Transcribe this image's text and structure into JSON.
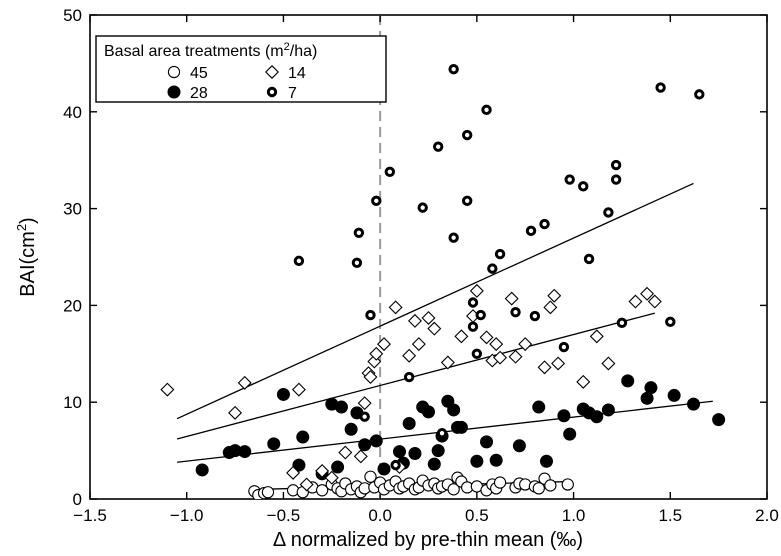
{
  "chart_data": {
    "type": "scatter",
    "title": "",
    "xlabel": "Δ normalized by pre-thin mean (‰)",
    "ylabel_main": "BAI(cm",
    "ylabel_sup": "2",
    "ylabel_end": ")",
    "xlim": [
      -1.5,
      2.0
    ],
    "ylim": [
      0,
      50
    ],
    "xticks": [
      -1.5,
      -1.0,
      -0.5,
      0.0,
      0.5,
      1.0,
      1.5,
      2.0
    ],
    "xtick_labels": [
      "−1.5",
      "−1.0",
      "−0.5",
      "0.0",
      "0.5",
      "1.0",
      "1.5",
      "2.0"
    ],
    "yticks": [
      0,
      10,
      20,
      30,
      40,
      50
    ],
    "ytick_labels": [
      "0",
      "10",
      "20",
      "30",
      "40",
      "50"
    ],
    "reference_line_x": 0.0,
    "grid": false,
    "legend": {
      "placement": "top-left",
      "title_main": "Basal area treatments (m",
      "title_sup": "2",
      "title_end": "/ha)"
    },
    "series": [
      {
        "name": "45",
        "marker": "open-circle",
        "fit": [
          [
            -0.62,
            1.0
          ],
          [
            0.98,
            1.8
          ]
        ],
        "points": [
          [
            -0.65,
            0.8
          ],
          [
            -0.63,
            0.4
          ],
          [
            -0.6,
            0.6
          ],
          [
            -0.58,
            0.7
          ],
          [
            -0.45,
            0.9
          ],
          [
            -0.4,
            0.7
          ],
          [
            -0.35,
            1.2
          ],
          [
            -0.3,
            0.9
          ],
          [
            -0.25,
            1.5
          ],
          [
            -0.22,
            1.1
          ],
          [
            -0.2,
            0.8
          ],
          [
            -0.18,
            1.6
          ],
          [
            -0.15,
            1.0
          ],
          [
            -0.12,
            1.3
          ],
          [
            -0.1,
            0.7
          ],
          [
            -0.08,
            1.1
          ],
          [
            -0.05,
            2.3
          ],
          [
            -0.03,
            1.2
          ],
          [
            0.0,
            1.7
          ],
          [
            0.02,
            1.0
          ],
          [
            0.05,
            1.4
          ],
          [
            0.08,
            1.8
          ],
          [
            0.1,
            1.1
          ],
          [
            0.12,
            1.3
          ],
          [
            0.15,
            1.6
          ],
          [
            0.18,
            1.0
          ],
          [
            0.2,
            1.2
          ],
          [
            0.22,
            1.9
          ],
          [
            0.25,
            1.4
          ],
          [
            0.28,
            1.6
          ],
          [
            0.3,
            1.1
          ],
          [
            0.32,
            1.3
          ],
          [
            0.35,
            1.5
          ],
          [
            0.38,
            1.0
          ],
          [
            0.4,
            2.2
          ],
          [
            0.42,
            1.8
          ],
          [
            0.45,
            1.2
          ],
          [
            0.5,
            1.3
          ],
          [
            0.55,
            0.9
          ],
          [
            0.58,
            1.5
          ],
          [
            0.6,
            1.1
          ],
          [
            0.62,
            1.7
          ],
          [
            0.7,
            1.2
          ],
          [
            0.72,
            1.6
          ],
          [
            0.75,
            1.5
          ],
          [
            0.8,
            1.3
          ],
          [
            0.82,
            1.1
          ],
          [
            0.85,
            2.1
          ],
          [
            0.88,
            1.4
          ],
          [
            0.97,
            1.5
          ]
        ]
      },
      {
        "name": "28",
        "marker": "filled-circle",
        "fit": [
          [
            -1.05,
            3.8
          ],
          [
            1.72,
            10.1
          ]
        ],
        "points": [
          [
            -0.92,
            3.0
          ],
          [
            -0.78,
            4.8
          ],
          [
            -0.75,
            5.0
          ],
          [
            -0.7,
            4.9
          ],
          [
            -0.55,
            5.7
          ],
          [
            -0.5,
            10.8
          ],
          [
            -0.42,
            3.5
          ],
          [
            -0.4,
            6.4
          ],
          [
            -0.3,
            2.6
          ],
          [
            -0.25,
            9.8
          ],
          [
            -0.22,
            3.3
          ],
          [
            -0.2,
            9.5
          ],
          [
            -0.15,
            7.2
          ],
          [
            -0.12,
            8.9
          ],
          [
            -0.08,
            5.6
          ],
          [
            -0.02,
            6.0
          ],
          [
            0.02,
            3.1
          ],
          [
            0.1,
            4.9
          ],
          [
            0.12,
            3.7
          ],
          [
            0.15,
            7.8
          ],
          [
            0.18,
            4.7
          ],
          [
            0.22,
            9.5
          ],
          [
            0.25,
            9.0
          ],
          [
            0.28,
            3.6
          ],
          [
            0.3,
            5.0
          ],
          [
            0.32,
            6.5
          ],
          [
            0.35,
            10.1
          ],
          [
            0.38,
            9.2
          ],
          [
            0.4,
            7.4
          ],
          [
            0.42,
            7.4
          ],
          [
            0.5,
            3.9
          ],
          [
            0.55,
            5.9
          ],
          [
            0.6,
            4.0
          ],
          [
            0.72,
            5.5
          ],
          [
            0.82,
            9.5
          ],
          [
            0.86,
            3.9
          ],
          [
            0.95,
            8.6
          ],
          [
            0.98,
            6.7
          ],
          [
            1.05,
            9.3
          ],
          [
            1.08,
            8.9
          ],
          [
            1.12,
            8.5
          ],
          [
            1.18,
            9.2
          ],
          [
            1.28,
            12.2
          ],
          [
            1.38,
            10.4
          ],
          [
            1.4,
            11.5
          ],
          [
            1.52,
            10.7
          ],
          [
            1.62,
            9.8
          ],
          [
            1.75,
            8.2
          ]
        ]
      },
      {
        "name": "14",
        "marker": "open-diamond",
        "fit": [
          [
            -1.05,
            6.2
          ],
          [
            1.42,
            19.2
          ]
        ],
        "points": [
          [
            -1.1,
            11.3
          ],
          [
            -0.75,
            8.9
          ],
          [
            -0.7,
            12.0
          ],
          [
            -0.45,
            2.7
          ],
          [
            -0.42,
            11.3
          ],
          [
            -0.38,
            1.5
          ],
          [
            -0.3,
            2.9
          ],
          [
            -0.25,
            2.2
          ],
          [
            -0.18,
            4.8
          ],
          [
            -0.1,
            4.4
          ],
          [
            -0.08,
            9.9
          ],
          [
            -0.06,
            13.0
          ],
          [
            -0.05,
            12.6
          ],
          [
            -0.03,
            14.2
          ],
          [
            -0.02,
            15.0
          ],
          [
            0.02,
            16.0
          ],
          [
            0.08,
            19.8
          ],
          [
            0.1,
            3.3
          ],
          [
            0.15,
            14.8
          ],
          [
            0.18,
            18.4
          ],
          [
            0.2,
            16.0
          ],
          [
            0.25,
            18.7
          ],
          [
            0.28,
            17.6
          ],
          [
            0.35,
            14.1
          ],
          [
            0.42,
            16.8
          ],
          [
            0.48,
            18.9
          ],
          [
            0.5,
            21.5
          ],
          [
            0.55,
            16.7
          ],
          [
            0.58,
            14.3
          ],
          [
            0.6,
            16.0
          ],
          [
            0.62,
            14.6
          ],
          [
            0.68,
            20.7
          ],
          [
            0.7,
            14.7
          ],
          [
            0.75,
            16.0
          ],
          [
            0.85,
            13.6
          ],
          [
            0.88,
            19.8
          ],
          [
            0.9,
            21.0
          ],
          [
            0.92,
            14.0
          ],
          [
            1.05,
            12.1
          ],
          [
            1.12,
            16.8
          ],
          [
            1.18,
            14.0
          ],
          [
            1.32,
            20.4
          ],
          [
            1.38,
            21.2
          ],
          [
            1.42,
            20.4
          ]
        ]
      },
      {
        "name": "7",
        "marker": "dotted-circle",
        "fit": [
          [
            -1.05,
            8.3
          ],
          [
            1.62,
            32.6
          ]
        ],
        "points": [
          [
            -0.42,
            24.6
          ],
          [
            -0.12,
            24.4
          ],
          [
            -0.11,
            27.5
          ],
          [
            -0.08,
            8.5
          ],
          [
            -0.05,
            19.0
          ],
          [
            -0.02,
            30.8
          ],
          [
            0.05,
            33.8
          ],
          [
            0.08,
            3.5
          ],
          [
            0.15,
            12.6
          ],
          [
            0.22,
            30.1
          ],
          [
            0.3,
            36.4
          ],
          [
            0.32,
            6.8
          ],
          [
            0.38,
            27.0
          ],
          [
            0.38,
            44.4
          ],
          [
            0.45,
            37.6
          ],
          [
            0.45,
            30.8
          ],
          [
            0.48,
            20.3
          ],
          [
            0.48,
            17.8
          ],
          [
            0.5,
            15.0
          ],
          [
            0.52,
            19.0
          ],
          [
            0.55,
            40.2
          ],
          [
            0.58,
            23.8
          ],
          [
            0.62,
            25.3
          ],
          [
            0.7,
            19.3
          ],
          [
            0.78,
            27.7
          ],
          [
            0.8,
            18.9
          ],
          [
            0.85,
            28.4
          ],
          [
            0.95,
            15.7
          ],
          [
            0.98,
            33.0
          ],
          [
            1.05,
            32.3
          ],
          [
            1.08,
            24.8
          ],
          [
            1.18,
            29.6
          ],
          [
            1.22,
            34.5
          ],
          [
            1.22,
            33.0
          ],
          [
            1.25,
            18.2
          ],
          [
            1.45,
            42.5
          ],
          [
            1.5,
            18.3
          ],
          [
            1.65,
            41.8
          ]
        ]
      }
    ]
  }
}
